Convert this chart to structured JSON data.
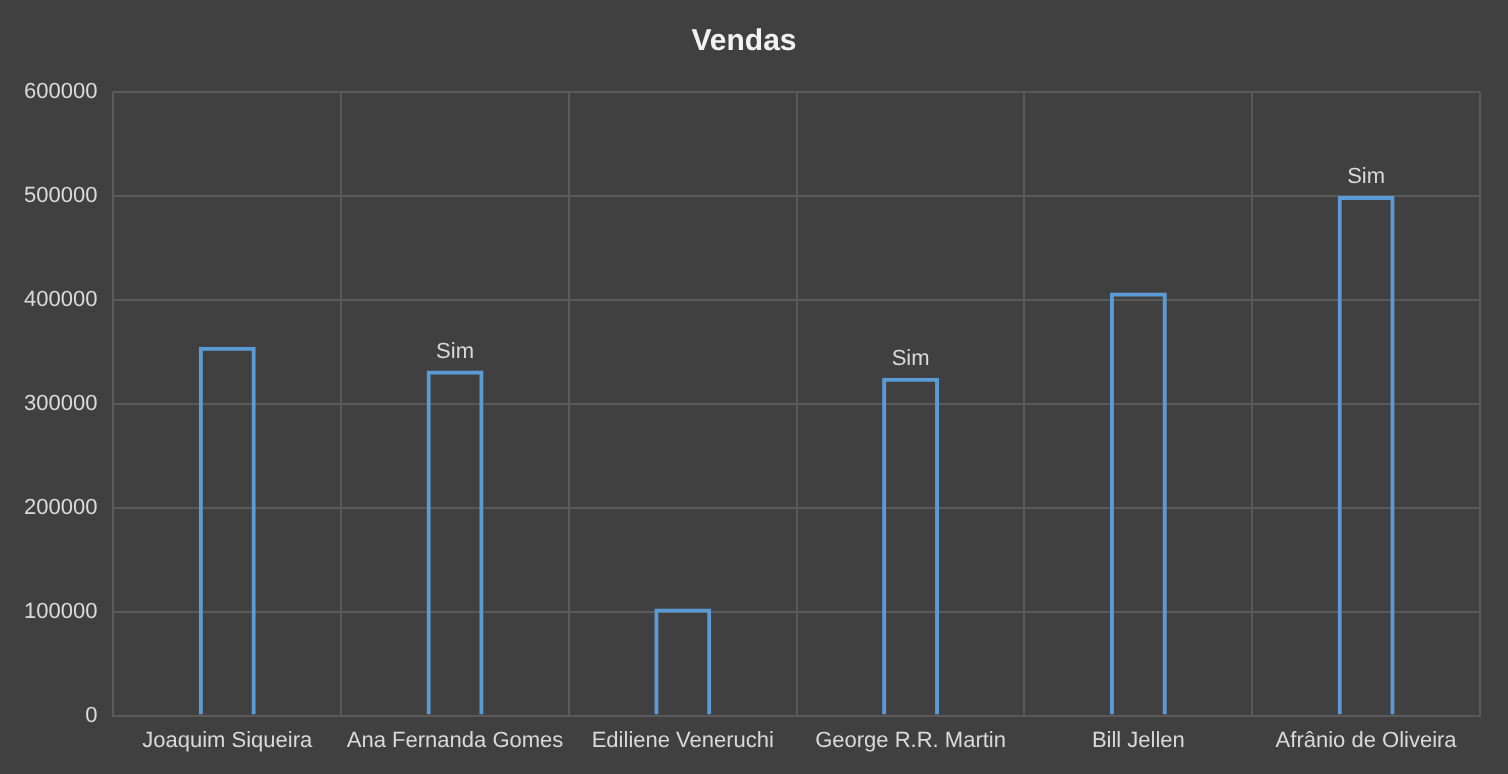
{
  "chart_data": {
    "type": "bar",
    "title": "Vendas",
    "categories": [
      "Joaquim Siqueira",
      "Ana Fernanda Gomes",
      "Ediliene Veneruchi",
      "George R.R. Martin",
      "Bill Jellen",
      "Afrânio de Oliveira"
    ],
    "values": [
      355000,
      332000,
      103000,
      325000,
      407000,
      500000
    ],
    "value_labels": [
      null,
      "Sim",
      null,
      "Sim",
      null,
      "Sim"
    ],
    "color": "#5b9bd5",
    "ylim": [
      0,
      600000
    ],
    "yticks": [
      0,
      100000,
      200000,
      300000,
      400000,
      500000,
      600000
    ],
    "grid": true,
    "legend": false
  }
}
